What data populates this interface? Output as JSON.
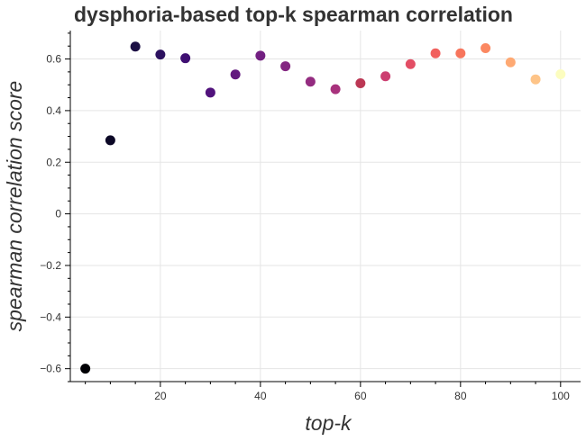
{
  "chart_data": {
    "type": "scatter",
    "title": "dysphoria-based top-k spearman correlation",
    "xlabel": "top-k",
    "ylabel": "spearman correlation score",
    "xlim": [
      2,
      104
    ],
    "ylim": [
      -0.65,
      0.71
    ],
    "x_ticks": [
      20,
      40,
      60,
      80,
      100
    ],
    "x_tick_labels": [
      "20",
      "40",
      "60",
      "80",
      "100"
    ],
    "y_ticks": [
      -0.6,
      -0.4,
      -0.2,
      0,
      0.2,
      0.4,
      0.6
    ],
    "y_tick_labels": [
      "−0.6",
      "−0.4",
      "−0.2",
      "0",
      "0.2",
      "0.4",
      "0.6"
    ],
    "grid": true,
    "colormap": "magma",
    "x": [
      5,
      10,
      15,
      20,
      25,
      30,
      35,
      40,
      45,
      50,
      55,
      60,
      65,
      70,
      75,
      80,
      85,
      90,
      95,
      100
    ],
    "y": [
      -0.6,
      0.285,
      0.648,
      0.617,
      0.603,
      0.47,
      0.54,
      0.613,
      0.572,
      0.512,
      0.483,
      0.506,
      0.533,
      0.58,
      0.622,
      0.622,
      0.642,
      0.587,
      0.521,
      0.541
    ],
    "colors": [
      "#000004",
      "#0c0826",
      "#1c1044",
      "#2c115f",
      "#3f0f72",
      "#51127c",
      "#63197f",
      "#721f81",
      "#832681",
      "#942c80",
      "#a8327d",
      "#bb3754",
      "#cc3f71",
      "#e34e65",
      "#f1605d",
      "#f7755c",
      "#fb8861",
      "#fea973",
      "#fec488",
      "#fcfdbf"
    ]
  }
}
